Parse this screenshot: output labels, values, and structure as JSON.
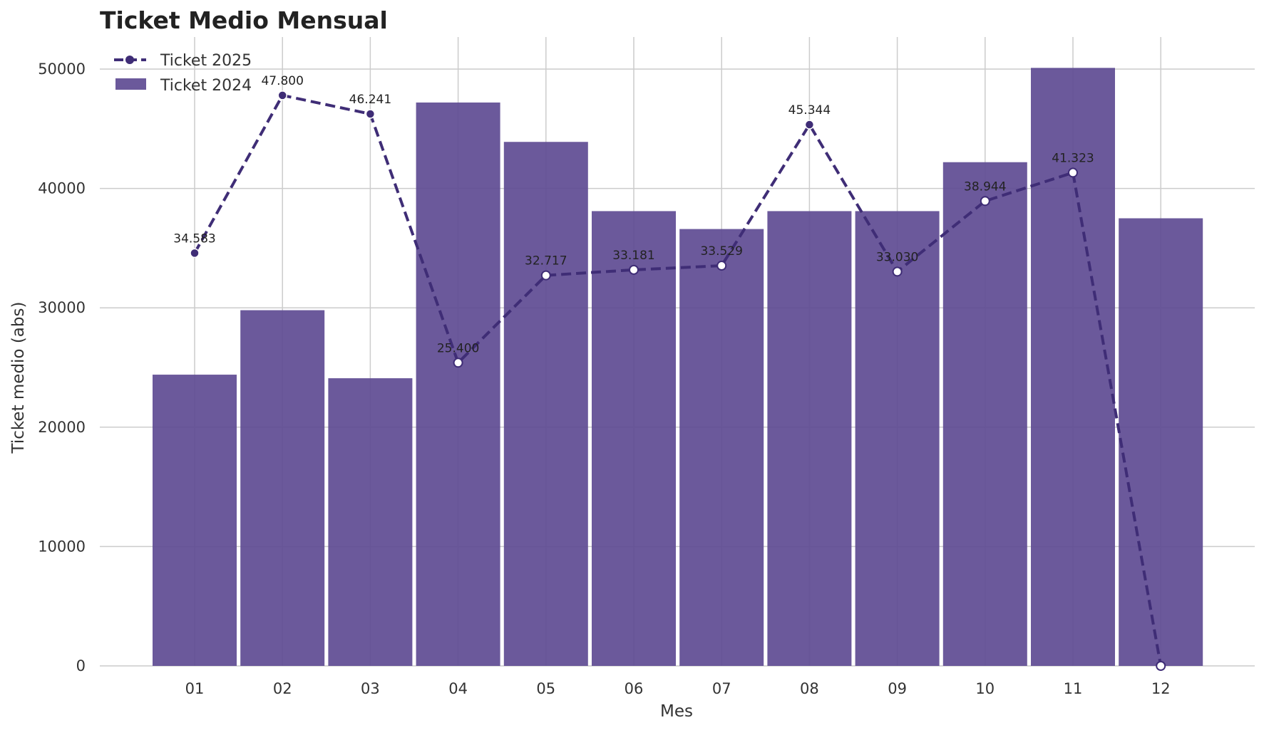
{
  "chart_data": {
    "type": "bar",
    "title": "Ticket Medio Mensual",
    "xlabel": "Mes",
    "ylabel": "Ticket medio (abs)",
    "ylim": [
      0,
      52500
    ],
    "yticks": [
      0,
      10000,
      20000,
      30000,
      40000,
      50000
    ],
    "grid": true,
    "legend_position": "top-left",
    "categories": [
      "01",
      "02",
      "03",
      "04",
      "05",
      "06",
      "07",
      "08",
      "09",
      "10",
      "11",
      "12"
    ],
    "series": [
      {
        "name": "Ticket 2025",
        "kind": "line",
        "style": "dashed",
        "color": "#3f2d76",
        "values": [
          34583,
          47800,
          46241,
          25400,
          32717,
          33181,
          33529,
          45344,
          33030,
          38944,
          41323,
          0
        ],
        "labels": [
          "34.583",
          "47.800",
          "46.241",
          "25.400",
          "32.717",
          "33.181",
          "33.529",
          "45.344",
          "33.030",
          "38.944",
          "41.323",
          ""
        ]
      },
      {
        "name": "Ticket 2024",
        "kind": "bar",
        "color": "#5e4b93",
        "values": [
          24400,
          29800,
          24100,
          47200,
          43900,
          38100,
          36600,
          38100,
          38100,
          42200,
          50100,
          37500
        ]
      }
    ]
  }
}
